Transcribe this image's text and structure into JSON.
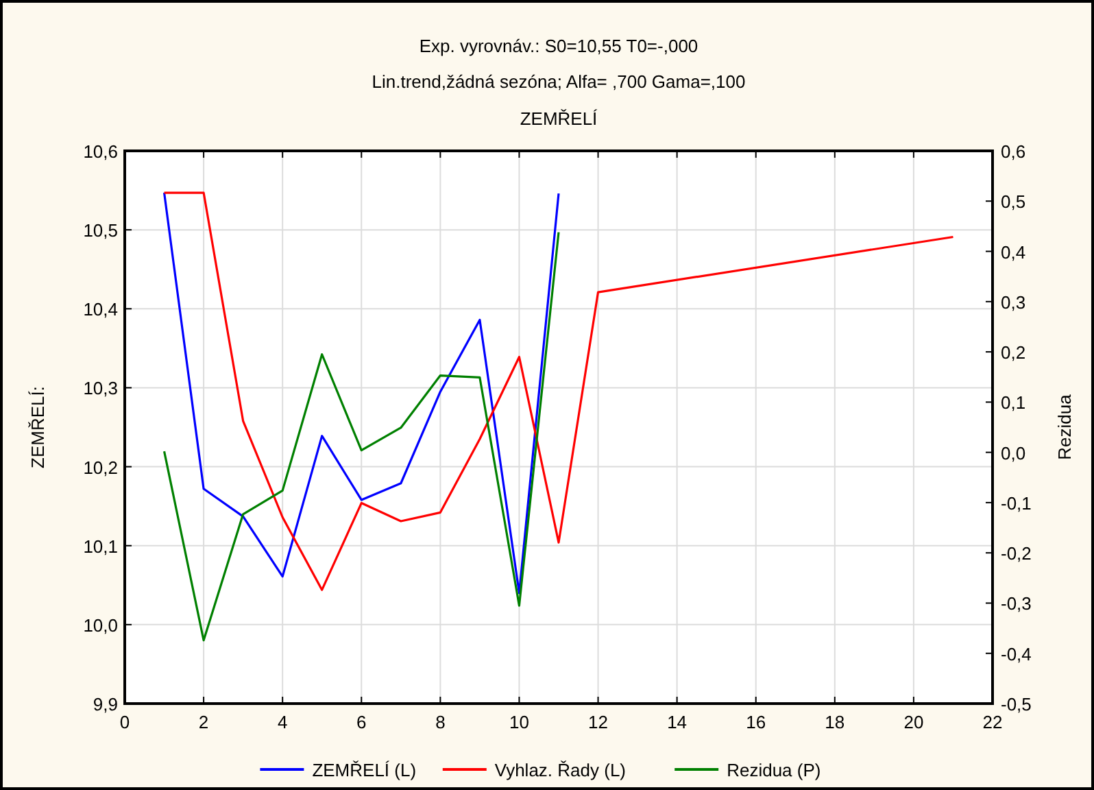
{
  "chart_data": {
    "type": "line",
    "title": "Exp. vyrovnáv.:  S0=10,55 T0=-,000",
    "subtitle": "Lin.trend,žádná sezóna; Alfa=  ,700 Gama=,100",
    "annotations": [
      "ZEMŘELÍ"
    ],
    "ylabel": "ZEMŘELÍ:",
    "y2label": "Rezidua",
    "xlim": [
      0,
      22
    ],
    "xticks": [
      0,
      2,
      4,
      6,
      8,
      10,
      12,
      14,
      16,
      18,
      20,
      22
    ],
    "ylim": [
      9.9,
      10.6
    ],
    "yticks": [
      {
        "value": 9.9,
        "label": "9,9"
      },
      {
        "value": 10.0,
        "label": "10,0"
      },
      {
        "value": 10.1,
        "label": "10,1"
      },
      {
        "value": 10.2,
        "label": "10,2"
      },
      {
        "value": 10.3,
        "label": "10,3"
      },
      {
        "value": 10.4,
        "label": "10,4"
      },
      {
        "value": 10.5,
        "label": "10,5"
      },
      {
        "value": 10.6,
        "label": "10,6"
      }
    ],
    "y2lim": [
      -0.5,
      0.6
    ],
    "y2ticks": [
      {
        "value": -0.5,
        "label": "-0,5"
      },
      {
        "value": -0.4,
        "label": "-0,4"
      },
      {
        "value": -0.3,
        "label": "-0,3"
      },
      {
        "value": -0.2,
        "label": "-0,2"
      },
      {
        "value": -0.1,
        "label": "-0,1"
      },
      {
        "value": 0.0,
        "label": "0,0"
      },
      {
        "value": 0.1,
        "label": "0,1"
      },
      {
        "value": 0.2,
        "label": "0,2"
      },
      {
        "value": 0.3,
        "label": "0,3"
      },
      {
        "value": 0.4,
        "label": "0,4"
      },
      {
        "value": 0.5,
        "label": "0,5"
      },
      {
        "value": 0.6,
        "label": "0,6"
      }
    ],
    "grid": true,
    "legend": "bottom",
    "series": [
      {
        "name": "ZEMŘELÍ (L)",
        "color": "#0000ff",
        "x": [
          1,
          2,
          3,
          4,
          5,
          6,
          7,
          8,
          9,
          10,
          11
        ],
        "values": [
          10.547,
          10.172,
          10.137,
          10.061,
          10.239,
          10.158,
          10.179,
          10.295,
          10.386,
          10.04,
          10.546
        ]
      },
      {
        "name": "Vyhlaz. Řady (L)",
        "color": "#ff0000",
        "x": [
          1,
          2,
          3,
          4,
          5,
          6,
          7,
          8,
          9,
          10,
          11,
          12,
          21
        ],
        "values": [
          10.547,
          10.547,
          10.258,
          10.136,
          10.044,
          10.154,
          10.131,
          10.142,
          10.235,
          10.339,
          10.104,
          10.421,
          10.491
        ]
      },
      {
        "name": "Rezidua (P)",
        "color": "#008000",
        "axis": "y2",
        "x": [
          1,
          2,
          3,
          4,
          5,
          6,
          7,
          8,
          9,
          10,
          11
        ],
        "values": [
          0.002,
          -0.374,
          -0.123,
          -0.076,
          0.195,
          0.004,
          0.049,
          0.153,
          0.149,
          -0.305,
          0.438
        ]
      }
    ]
  }
}
